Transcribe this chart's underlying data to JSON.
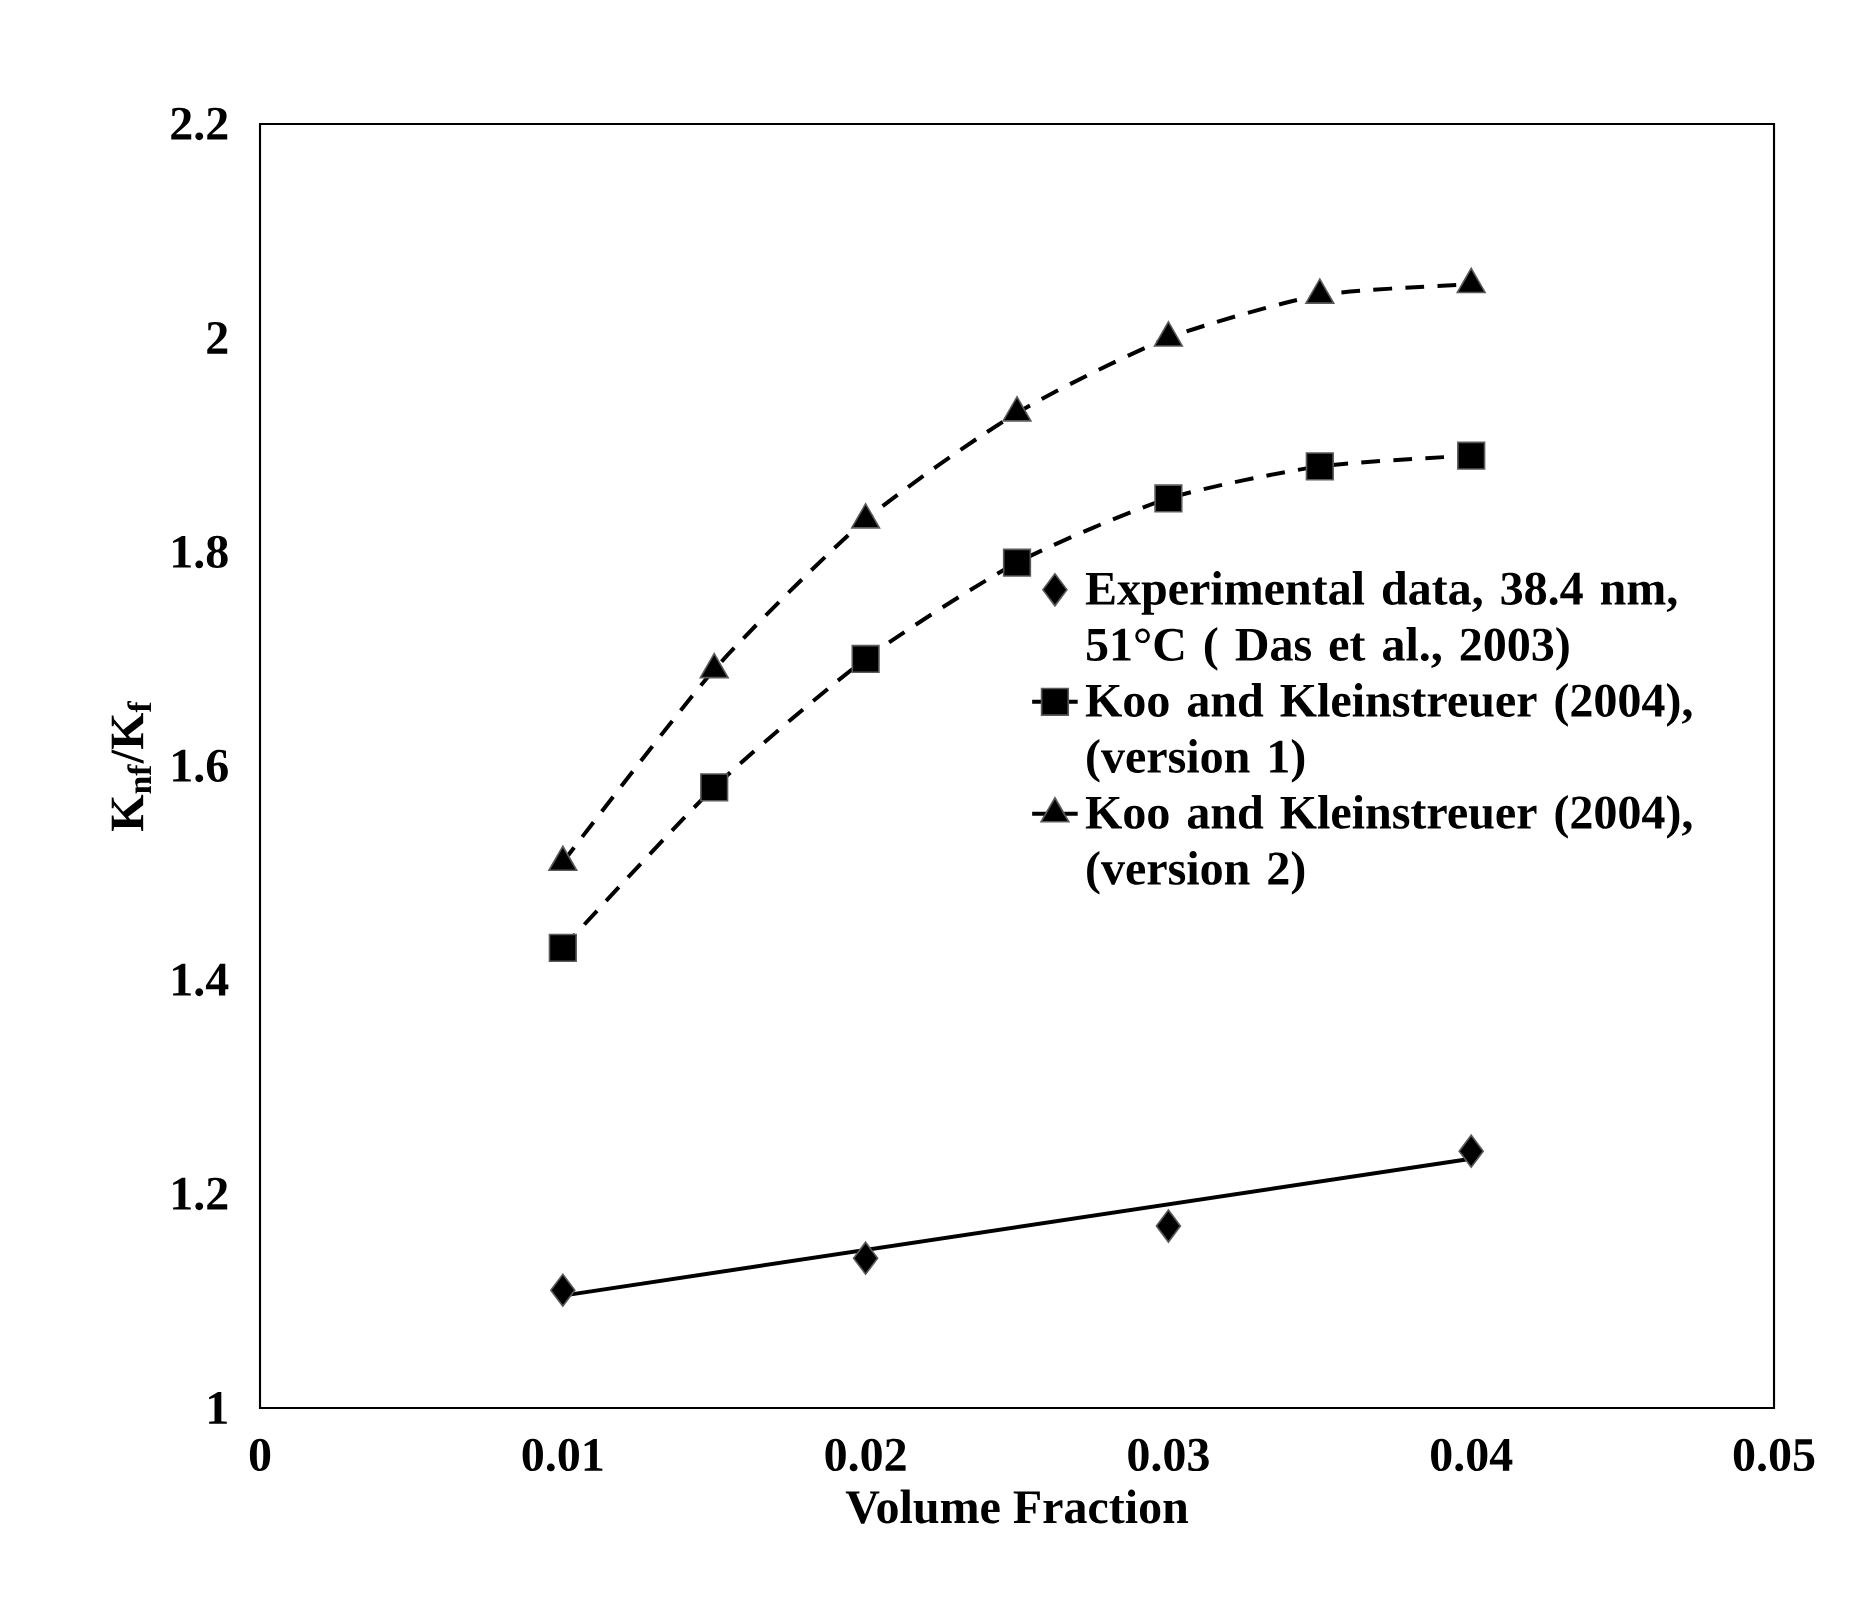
{
  "chart_data": {
    "type": "scatter",
    "xlabel": "Volume Fraction",
    "ylabel": "K$_{nf}$/K$_{f}$",
    "xlim": [
      0,
      0.05
    ],
    "xticks": [
      0,
      0.01,
      0.02,
      0.03,
      0.04,
      0.05
    ],
    "ylim": [
      1,
      2.2
    ],
    "yticks": [
      1,
      1.2,
      1.4,
      1.6,
      1.8,
      2,
      2.2
    ],
    "grid": false,
    "legend": "right",
    "series": [
      {
        "name": "Experimental data, 38.4 nm, 51°C ( Das  et al., 2003)",
        "color": "#000000",
        "marker": "diamond",
        "x": [
          0.01,
          0.02,
          0.03,
          0.04
        ],
        "values": [
          1.11,
          1.14,
          1.17,
          1.24
        ]
      },
      {
        "type": "line",
        "color": "#000000",
        "marker": "none",
        "line_style": "solid",
        "x": [
          0.01,
          0.04
        ],
        "values": [
          1.105,
          1.233
        ]
      },
      {
        "name": "Koo and Kleinstreuer (2004), (version 1)",
        "type": "line",
        "color": "#000000",
        "marker": "square",
        "line_style": "dashed",
        "x": [
          0.01,
          0.015,
          0.02,
          0.025,
          0.03,
          0.035,
          0.04
        ],
        "values": [
          1.43,
          1.58,
          1.7,
          1.79,
          1.85,
          1.88,
          1.89
        ]
      },
      {
        "name": "Koo and Kleinstreuer (2004), (version 2)",
        "type": "line",
        "color": "#000000",
        "marker": "triangle",
        "line_style": "dashed",
        "x": [
          0.01,
          0.015,
          0.02,
          0.025,
          0.03,
          0.035,
          0.04
        ],
        "values": [
          1.51,
          1.69,
          1.83,
          1.93,
          2.0,
          2.04,
          2.05
        ]
      }
    ]
  }
}
